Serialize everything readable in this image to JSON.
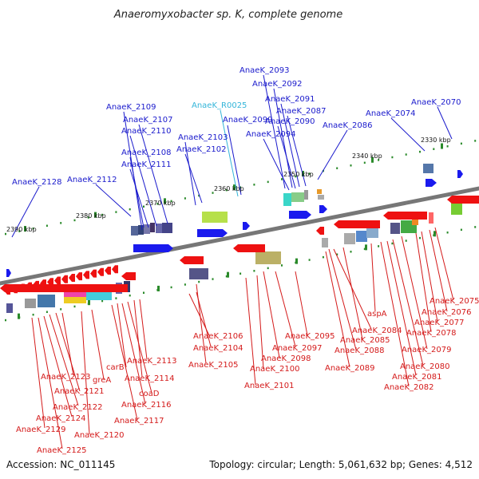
{
  "title": "Anaeromyxobacter sp. K, complete genome",
  "footer": {
    "accession": "Accession: NC_011145",
    "summary": "Topology: circular; Length: 5,061,632 bp; Genes: 4,512"
  },
  "colors": {
    "forward_label": "#1a1acc",
    "rna_label": "#33b5d9",
    "reverse_label": "#d41a1a",
    "genome_backbone": "#777777",
    "tick": "#2a8a2a"
  },
  "kbp_markers": [
    "2390 kbp",
    "2380 kbp",
    "2370 kbp",
    "2360 kbp",
    "2350 kbp",
    "2340 kbp",
    "2330 kbp"
  ],
  "forward_genes": [
    "AnaeK_2128",
    "AnaeK_2112",
    "AnaeK_2111",
    "AnaeK_2108",
    "AnaeK_2110",
    "AnaeK_2109",
    "AnaeK_2107",
    "AnaeK_2103",
    "AnaeK_2102",
    "AnaeK_2099",
    "AnaeK_2094",
    "AnaeK_2093",
    "AnaeK_2092",
    "AnaeK_2091",
    "AnaeK_2087",
    "AnaeK_2090",
    "AnaeK_2086",
    "AnaeK_2074",
    "AnaeK_2070"
  ],
  "rna_genes": [
    "AnaeK_R0025"
  ],
  "reverse_genes": [
    "AnaeK_2106",
    "AnaeK_2104",
    "AnaeK_2105",
    "AnaeK_2095",
    "AnaeK_2097",
    "AnaeK_2098",
    "AnaeK_2100",
    "AnaeK_2101",
    "AnaeK_2084",
    "AnaeK_2085",
    "AnaeK_2088",
    "AnaeK_2089",
    "aspA",
    "AnaeK_2075",
    "AnaeK_2076",
    "AnaeK_2077",
    "AnaeK_2078",
    "AnaeK_2079",
    "AnaeK_2080",
    "AnaeK_2081",
    "AnaeK_2082",
    "AnaeK_2113",
    "AnaeK_2114",
    "carB",
    "coaD",
    "AnaeK_2116",
    "AnaeK_2117",
    "greA",
    "AnaeK_2123",
    "AnaeK_2121",
    "AnaeK_2122",
    "AnaeK_2124",
    "AnaeK_2129",
    "AnaeK_2120",
    "AnaeK_2125"
  ]
}
